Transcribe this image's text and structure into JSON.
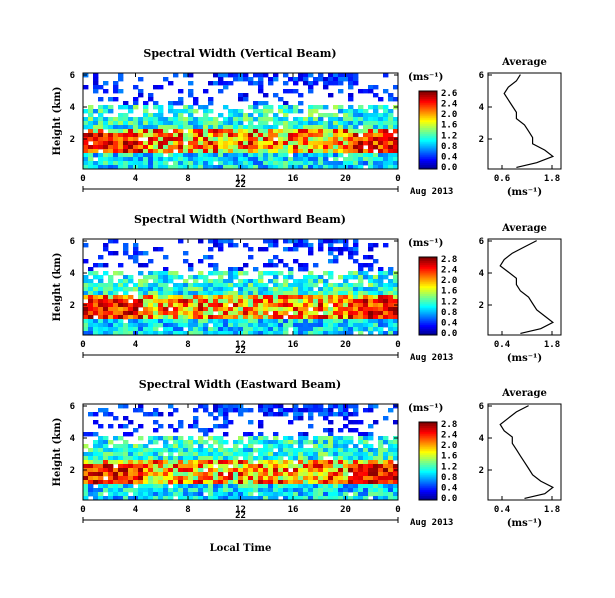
{
  "chart_data": [
    {
      "type": "heatmap",
      "title": "Spectral Width (Vertical Beam)",
      "ylabel": "Height (km)",
      "yticks": [
        "6",
        "4",
        "2"
      ],
      "xticks": [
        "0",
        "4",
        "8",
        "12",
        "16",
        "20",
        "0"
      ],
      "date_day": "22",
      "date_label": "Aug 2013",
      "colorbar": {
        "unit": "(ms⁻¹)",
        "ticks": [
          "2.6",
          "2.4",
          "2.0",
          "1.6",
          "1.2",
          "0.8",
          "0.4",
          "0.0"
        ]
      },
      "average": {
        "title": "Average",
        "xticks": [
          "0.6",
          "1.8"
        ],
        "xlabel": "(ms⁻¹)",
        "yticks": [
          "6",
          "4",
          "2"
        ],
        "height_km": [
          0.1,
          0.4,
          0.8,
          1.2,
          1.6,
          2.0,
          2.4,
          2.8,
          3.2,
          3.6,
          4.0,
          4.4,
          4.8,
          5.2,
          5.6,
          6.0
        ],
        "width_ms": [
          0.9,
          1.4,
          1.8,
          1.6,
          1.3,
          1.3,
          1.2,
          1.1,
          0.9,
          0.9,
          0.8,
          0.7,
          0.6,
          0.7,
          0.9,
          1.0
        ]
      }
    },
    {
      "type": "heatmap",
      "title": "Spectral Width (Northward Beam)",
      "ylabel": "Height (km)",
      "yticks": [
        "6",
        "4",
        "2"
      ],
      "xticks": [
        "0",
        "4",
        "8",
        "12",
        "16",
        "20",
        "0"
      ],
      "date_day": "22",
      "date_label": "Aug 2013",
      "colorbar": {
        "unit": "(ms⁻¹)",
        "ticks": [
          "2.8",
          "2.4",
          "2.0",
          "1.6",
          "1.2",
          "0.8",
          "0.4",
          "0.0"
        ]
      },
      "average": {
        "title": "Average",
        "xticks": [
          "0.4",
          "1.8"
        ],
        "xlabel": "(ms⁻¹)",
        "yticks": [
          "6",
          "4",
          "2"
        ],
        "height_km": [
          0.1,
          0.4,
          0.8,
          1.2,
          1.6,
          2.0,
          2.4,
          2.8,
          3.2,
          3.6,
          4.0,
          4.4,
          4.8,
          5.2,
          5.6,
          6.0
        ],
        "width_ms": [
          1.0,
          1.5,
          1.8,
          1.6,
          1.4,
          1.3,
          1.2,
          1.0,
          0.9,
          0.9,
          0.7,
          0.5,
          0.6,
          0.8,
          1.1,
          1.4
        ]
      }
    },
    {
      "type": "heatmap",
      "title": "Spectral Width (Eastward Beam)",
      "ylabel": "Height (km)",
      "yticks": [
        "6",
        "4",
        "2"
      ],
      "xticks": [
        "0",
        "4",
        "8",
        "12",
        "16",
        "20",
        "0"
      ],
      "date_day": "22",
      "date_label": "Aug 2013",
      "xlabel": "Local Time",
      "colorbar": {
        "unit": "(ms⁻¹)",
        "ticks": [
          "2.8",
          "2.4",
          "2.0",
          "1.6",
          "1.2",
          "0.8",
          "0.4",
          "0.0"
        ]
      },
      "average": {
        "title": "Average",
        "xticks": [
          "0.4",
          "1.8"
        ],
        "xlabel": "(ms⁻¹)",
        "yticks": [
          "6",
          "4",
          "2"
        ],
        "height_km": [
          0.1,
          0.4,
          0.8,
          1.2,
          1.6,
          2.0,
          2.4,
          2.8,
          3.2,
          3.6,
          4.0,
          4.4,
          4.8,
          5.2,
          5.6,
          6.0
        ],
        "width_ms": [
          1.1,
          1.6,
          1.8,
          1.5,
          1.3,
          1.2,
          1.1,
          1.0,
          0.9,
          0.8,
          0.8,
          0.6,
          0.5,
          0.7,
          0.9,
          1.2
        ]
      }
    }
  ]
}
